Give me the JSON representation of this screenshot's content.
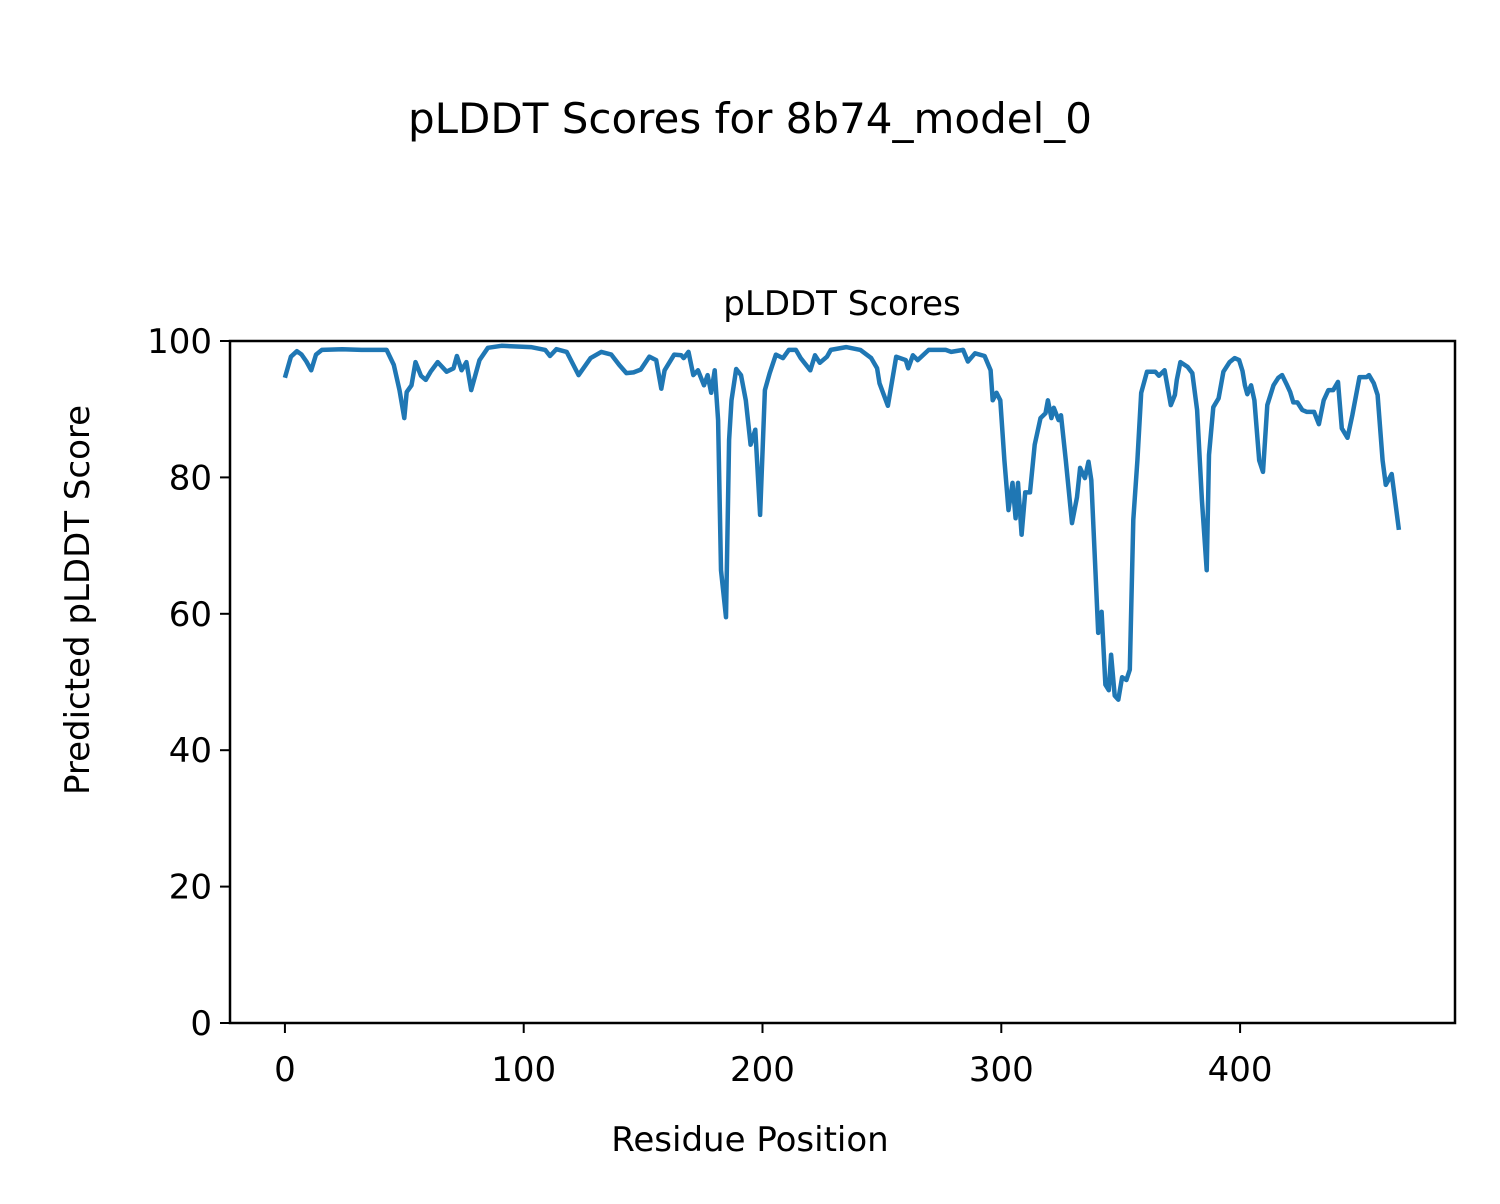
{
  "chart_data": {
    "type": "line",
    "suptitle": "pLDDT Scores for 8b74_model_0",
    "title": "pLDDT Scores",
    "xlabel": "Residue Position",
    "ylabel": "Predicted pLDDT Score",
    "xlim": [
      -23,
      490
    ],
    "ylim": [
      0,
      100
    ],
    "xticks": [
      0,
      100,
      200,
      300,
      400
    ],
    "yticks": [
      0,
      20,
      40,
      60,
      80,
      100
    ],
    "grid": false,
    "line_color": "#1f77b4",
    "series": [
      {
        "name": "pLDDT",
        "x": [
          0,
          2.5,
          5,
          7,
          9,
          11,
          13,
          15.5,
          24,
          32,
          42.6,
          45.6,
          48,
          50,
          51,
          53,
          54.7,
          57,
          59,
          61,
          64,
          67.7,
          70.6,
          72,
          74,
          76,
          78,
          81.5,
          85,
          90.7,
          103,
          109,
          111,
          113.7,
          118,
          123,
          128,
          132.5,
          136.7,
          140,
          143,
          146,
          149,
          152.6,
          155.5,
          157.6,
          159,
          163,
          166,
          167,
          169,
          171,
          173,
          175.5,
          177,
          178.5,
          180,
          181.4,
          182.6,
          184.7,
          186,
          187,
          189,
          191,
          193,
          195,
          197,
          199,
          201,
          203,
          205.6,
          208.6,
          211,
          214,
          216,
          220,
          222,
          224,
          227,
          228.6,
          235,
          241,
          245.5,
          248,
          249,
          252.5,
          256,
          260,
          261,
          263,
          265,
          269.6,
          276.7,
          279,
          284,
          286,
          289,
          293,
          295.5,
          296.4,
          298,
          299.6,
          301.3,
          303,
          304.7,
          306,
          307,
          308.5,
          310,
          312,
          314,
          316.4,
          318.5,
          319.5,
          321,
          322,
          324,
          325,
          327,
          329.6,
          331.7,
          333,
          335,
          336.5,
          337.7,
          339.4,
          340.6,
          342,
          343.6,
          345,
          346,
          347.5,
          349,
          350.6,
          352.4,
          353.8,
          355.3,
          357,
          358.6,
          361,
          364.5,
          366,
          368.4,
          371,
          372.7,
          373.5,
          375,
          378,
          380,
          382,
          384,
          386,
          387,
          388.8,
          391,
          393,
          395.6,
          397.7,
          399.6,
          401,
          402,
          403,
          404.6,
          406,
          408,
          409.6,
          411.4,
          414,
          416,
          417.6,
          419.7,
          421,
          422.3,
          424,
          426,
          428,
          431,
          433,
          435,
          437,
          439,
          441,
          442.6,
          445,
          447,
          450,
          453,
          454,
          456,
          457.6,
          459.7,
          461,
          463.5,
          466.5
        ],
        "y": [
          94.6,
          97.7,
          98.5,
          98,
          97,
          95.7,
          98,
          98.7,
          98.8,
          98.7,
          98.7,
          96.5,
          92.8,
          88.7,
          92.5,
          93.5,
          96.9,
          94.9,
          94.3,
          95.5,
          96.9,
          95.5,
          96,
          97.8,
          95.7,
          96.9,
          92.8,
          97.2,
          99,
          99.3,
          99.1,
          98.7,
          97.8,
          98.8,
          98.4,
          95,
          97.5,
          98.4,
          98,
          96.5,
          95.3,
          95.4,
          95.8,
          97.7,
          97.2,
          93,
          95.7,
          98,
          97.9,
          97.5,
          98.4,
          95,
          95.7,
          93.5,
          95,
          92.4,
          95.7,
          88.4,
          66.4,
          59.5,
          85.5,
          91.3,
          95.9,
          95,
          91.3,
          84.8,
          87,
          74.5,
          92.8,
          95.3,
          98,
          97.5,
          98.7,
          98.7,
          97.5,
          95.7,
          97.9,
          96.8,
          97.7,
          98.7,
          99.1,
          98.7,
          97.5,
          96,
          93.8,
          90.5,
          97.7,
          97.2,
          96,
          97.9,
          97.2,
          98.7,
          98.7,
          98.4,
          98.7,
          97,
          98.2,
          97.8,
          95.7,
          91.3,
          92.4,
          91.3,
          82.5,
          75.2,
          79.2,
          74,
          79.2,
          71.6,
          77.8,
          77.8,
          84.8,
          88.7,
          89.4,
          91.3,
          88.7,
          90.2,
          88.4,
          89.1,
          82.5,
          73.3,
          77.1,
          81.4,
          79.9,
          82.3,
          79.6,
          66.4,
          57.2,
          60.3,
          49.6,
          48.8,
          54,
          48,
          47.4,
          50.7,
          50.3,
          51.8,
          73.8,
          82.5,
          92.4,
          95.5,
          95.5,
          94.9,
          95.7,
          90.6,
          92.1,
          94.3,
          96.9,
          96.2,
          95.3,
          89.9,
          76.7,
          66.4,
          83.3,
          90.3,
          91.6,
          95.5,
          96.9,
          97.5,
          97.2,
          95.6,
          93.5,
          92.2,
          93.5,
          91.3,
          82.5,
          80.8,
          90.6,
          93.5,
          94.6,
          95,
          93.5,
          92.5,
          91,
          91,
          89.9,
          89.6,
          89.6,
          87.8,
          91.3,
          92.8,
          92.8,
          94,
          87.2,
          85.8,
          89.1,
          94.7,
          94.7,
          95,
          93.8,
          92.1,
          82.5,
          78.9,
          80.5,
          72.3
        ]
      }
    ]
  }
}
